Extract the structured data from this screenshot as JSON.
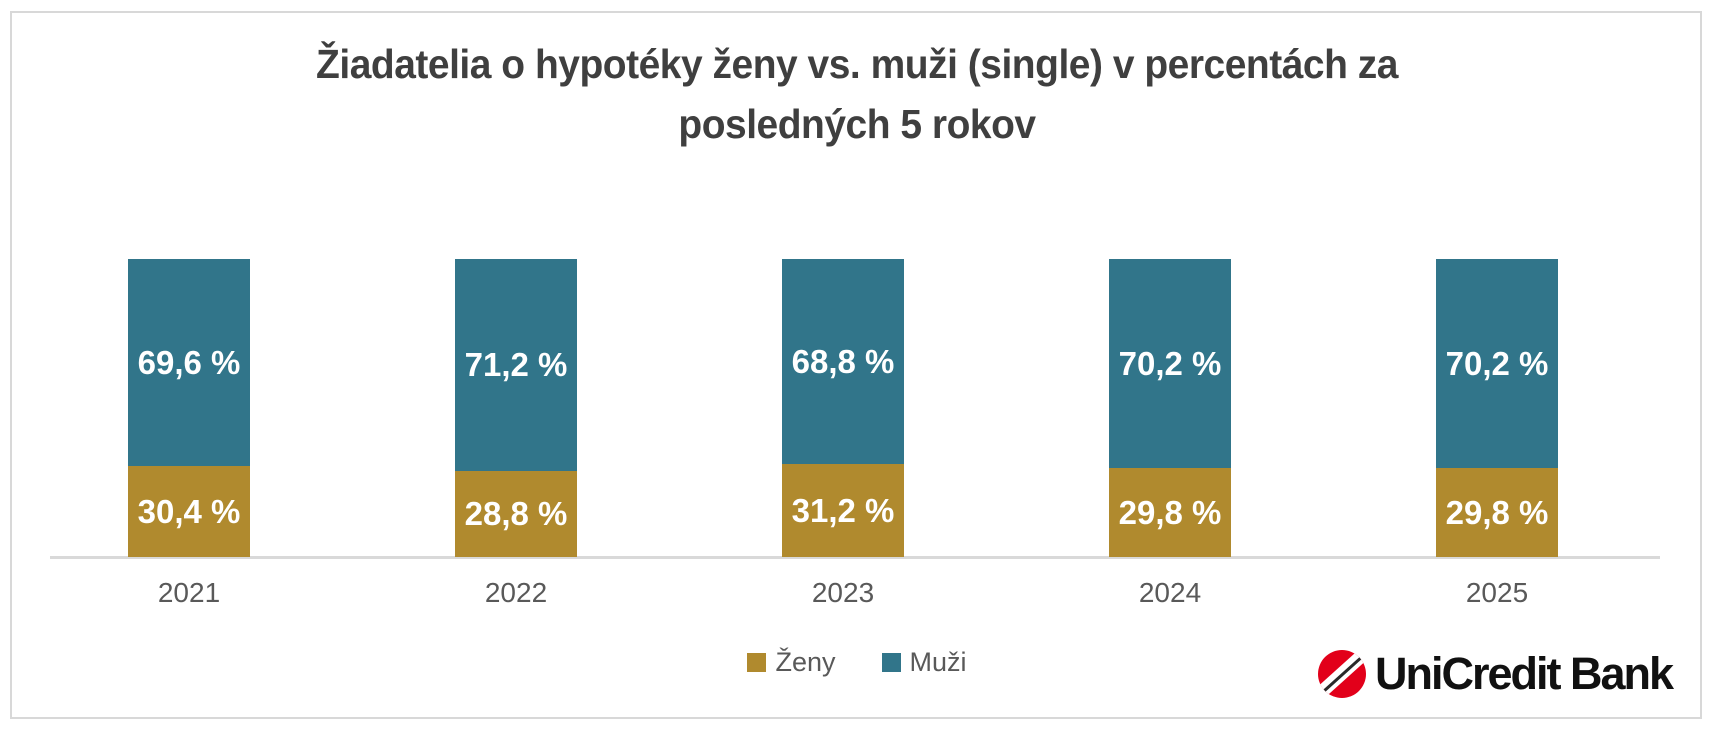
{
  "chart_data": {
    "type": "bar",
    "stacked": true,
    "title": "Žiadatelia o hypotéky ženy vs. muži (single) v percentách za posledných 5 rokov",
    "title_lines": [
      "Žiadatelia o hypotéky ženy vs. muži (single) v percentách za",
      "posledných 5 rokov"
    ],
    "categories": [
      "2021",
      "2022",
      "2023",
      "2024",
      "2025"
    ],
    "series": [
      {
        "name": "Ženy",
        "color": "#b08a2e",
        "values": [
          30.4,
          28.8,
          31.2,
          29.8,
          29.8
        ],
        "labels": [
          "30,4 %",
          "28,8 %",
          "31,2 %",
          "29,8 %",
          "29,8 %"
        ]
      },
      {
        "name": "Muži",
        "color": "#31758a",
        "values": [
          69.6,
          71.2,
          68.8,
          70.2,
          70.2
        ],
        "labels": [
          "69,6 %",
          "71,2 %",
          "68,8 %",
          "70,2 %",
          "70,2 %"
        ]
      }
    ],
    "xlabel": "",
    "ylabel": "",
    "ylim": [
      0,
      100
    ],
    "grid": false,
    "legend_position": "bottom-center",
    "data_label_color": "#ffffff",
    "axis_label_color": "#595959",
    "axis_line_color": "#d9d9d9",
    "title_color": "#3f3f3f"
  },
  "logo": {
    "text": "UniCredit Bank",
    "mark": "unicredit-red-circle",
    "mark_color": "#e2001a",
    "slash_color": "#ffffff",
    "slash_inner_color": "#2a2a2a",
    "text_color": "#111111"
  },
  "frame": {
    "border_color": "#d8d8d8",
    "background": "#ffffff"
  }
}
